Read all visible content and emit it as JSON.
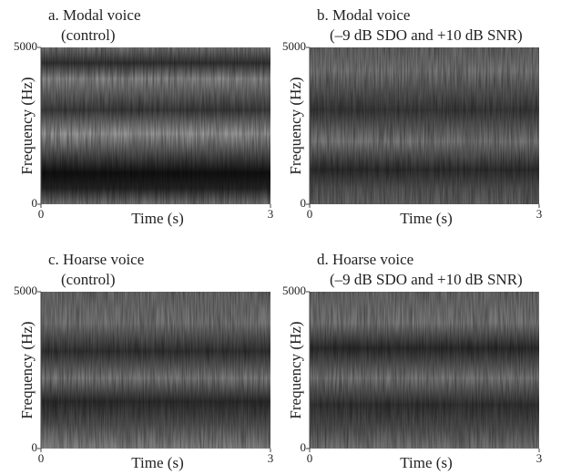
{
  "chart_data": [
    {
      "type": "spectrogram",
      "title": "a. Modal voice",
      "subtitle": "(control)",
      "xlabel": "Time (s)",
      "ylabel": "Frequency (Hz)",
      "xlim": [
        0,
        3
      ],
      "ylim": [
        0,
        5000
      ],
      "xticks": [
        0,
        3
      ],
      "yticks": [
        0,
        5000
      ]
    },
    {
      "type": "spectrogram",
      "title": "b. Modal voice",
      "subtitle": "(–9 dB SDO and +10 dB SNR)",
      "xlabel": "Time (s)",
      "ylabel": "Frequency (Hz)",
      "xlim": [
        0,
        3
      ],
      "ylim": [
        0,
        5000
      ],
      "xticks": [
        0,
        3
      ],
      "yticks": [
        0,
        5000
      ]
    },
    {
      "type": "spectrogram",
      "title": "c. Hoarse voice",
      "subtitle": "(control)",
      "xlabel": "Time (s)",
      "ylabel": "Frequency (Hz)",
      "xlim": [
        0,
        3
      ],
      "ylim": [
        0,
        5000
      ],
      "xticks": [
        0,
        3
      ],
      "yticks": [
        0,
        5000
      ]
    },
    {
      "type": "spectrogram",
      "title": "d. Hoarse voice",
      "subtitle": "(–9 dB SDO and +10 dB SNR)",
      "xlabel": "Time (s)",
      "ylabel": "Frequency (Hz)",
      "xlim": [
        0,
        3
      ],
      "ylim": [
        0,
        5000
      ],
      "xticks": [
        0,
        3
      ],
      "yticks": [
        0,
        5000
      ]
    }
  ]
}
